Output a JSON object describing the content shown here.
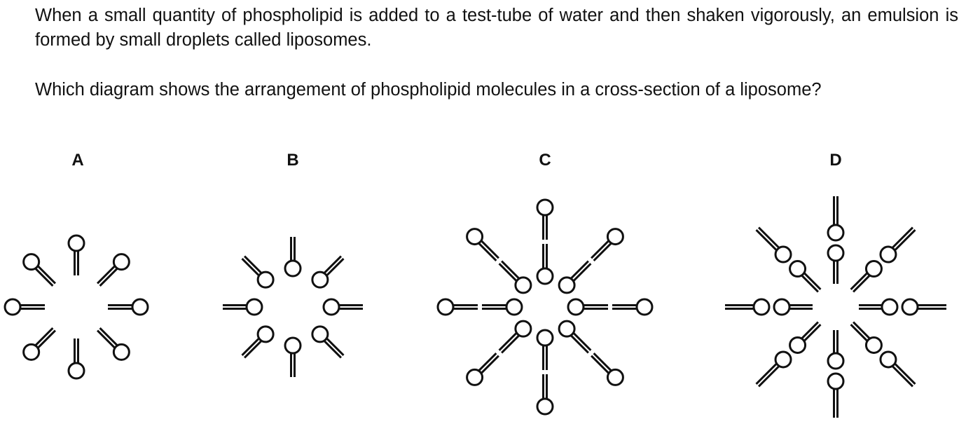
{
  "question": {
    "paragraph1": "When a small quantity of phospholipid is added to a test-tube of water and then shaken vigorously, an emulsion is formed by small droplets called liposomes.",
    "paragraph2": "Which diagram shows the arrangement of phospholipid molecules in a cross-section of a liposome?"
  },
  "options": [
    {
      "label": "A"
    },
    {
      "label": "B"
    },
    {
      "label": "C"
    },
    {
      "label": "D"
    }
  ]
}
